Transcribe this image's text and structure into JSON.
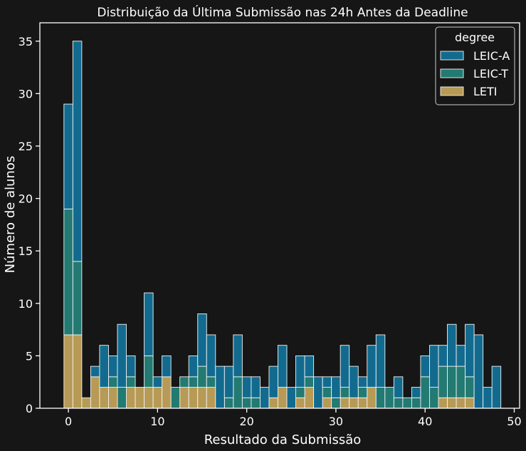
{
  "chart_data": {
    "type": "bar",
    "stacked": true,
    "title": "Distribuição da Última Submissão nas 24h Antes da Deadline",
    "xlabel": "Resultado da Submissão",
    "ylabel": "Número de alunos",
    "xlim": [
      -3.2,
      50.6
    ],
    "ylim": [
      0,
      36.75
    ],
    "bin_start": -0.5,
    "bin_width": 1,
    "x": [
      0,
      1,
      2,
      3,
      4,
      5,
      6,
      7,
      8,
      9,
      10,
      11,
      12,
      13,
      14,
      15,
      16,
      17,
      18,
      19,
      20,
      21,
      22,
      23,
      24,
      25,
      26,
      27,
      28,
      29,
      30,
      31,
      32,
      33,
      34,
      35,
      36,
      37,
      38,
      39,
      40,
      41,
      42,
      43,
      44,
      45,
      46,
      47,
      48
    ],
    "xticks": [
      0,
      10,
      20,
      30,
      40,
      50
    ],
    "yticks": [
      0,
      5,
      10,
      15,
      20,
      25,
      30,
      35
    ],
    "grid": false,
    "legend": {
      "title": "degree",
      "position": "top-right"
    },
    "series": [
      {
        "name": "LETI",
        "color": "#b79a55",
        "values": [
          7,
          7,
          1,
          3,
          2,
          2,
          0,
          2,
          2,
          2,
          2,
          3,
          0,
          2,
          2,
          2,
          2,
          0,
          0,
          0,
          0,
          0,
          0,
          1,
          2,
          0,
          1,
          2,
          0,
          1,
          0,
          1,
          1,
          1,
          2,
          0,
          0,
          0,
          0,
          0,
          0,
          0,
          1,
          1,
          1,
          1,
          0,
          0,
          0
        ]
      },
      {
        "name": "LEIC-T",
        "color": "#237a72",
        "values": [
          12,
          7,
          0,
          0,
          0,
          1,
          2,
          1,
          0,
          3,
          0,
          0,
          2,
          1,
          1,
          2,
          1,
          0,
          1,
          3,
          1,
          1,
          0,
          0,
          0,
          0,
          1,
          1,
          0,
          1,
          1,
          1,
          0,
          1,
          0,
          2,
          2,
          1,
          1,
          1,
          3,
          2,
          3,
          3,
          3,
          2,
          0,
          0,
          0
        ]
      },
      {
        "name": "LEIC-A",
        "color": "#126b8f",
        "values": [
          10,
          21,
          0,
          1,
          4,
          2,
          6,
          2,
          0,
          6,
          1,
          2,
          0,
          0,
          2,
          5,
          4,
          4,
          3,
          4,
          2,
          2,
          2,
          3,
          4,
          2,
          3,
          2,
          3,
          1,
          2,
          4,
          3,
          1,
          4,
          5,
          0,
          2,
          0,
          1,
          2,
          4,
          2,
          4,
          2,
          5,
          7,
          2,
          4
        ]
      }
    ]
  }
}
